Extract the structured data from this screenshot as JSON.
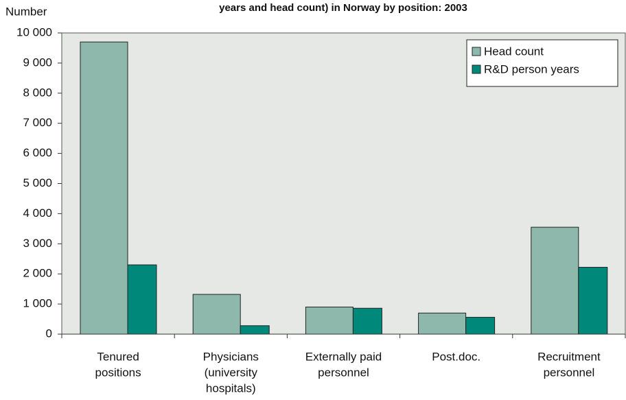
{
  "chart_data": {
    "type": "bar",
    "title": "years and head count) in Norway by position: 2003",
    "y_label": "Number",
    "categories": [
      [
        "Tenured",
        "positions"
      ],
      [
        "Physicians",
        "(university",
        "hospitals)"
      ],
      [
        "Externally paid",
        "personnel"
      ],
      [
        "Post.doc."
      ],
      [
        "Recruitment",
        "personnel"
      ]
    ],
    "series": [
      {
        "name": "Head count",
        "color": "#8fb8ad",
        "values": [
          9700,
          1320,
          900,
          700,
          3550
        ]
      },
      {
        "name": "R&D person years",
        "color": "#00897a",
        "values": [
          2300,
          280,
          860,
          560,
          2220
        ]
      }
    ],
    "ylim": [
      0,
      10000
    ],
    "yticks": [
      0,
      {
        "value": 1000,
        "label": "1 000"
      },
      {
        "value": 2000,
        "label": "2 000"
      },
      {
        "value": 3000,
        "label": "3 000"
      },
      {
        "value": 4000,
        "label": "4 000"
      },
      {
        "value": 5000,
        "label": "5 000"
      },
      {
        "value": 6000,
        "label": "6 000"
      },
      {
        "value": 7000,
        "label": "7 000"
      },
      {
        "value": 8000,
        "label": "8 000"
      },
      {
        "value": 9000,
        "label": "9 000"
      },
      {
        "value": 10000,
        "label": "10 000"
      }
    ],
    "legend": "top-right"
  }
}
